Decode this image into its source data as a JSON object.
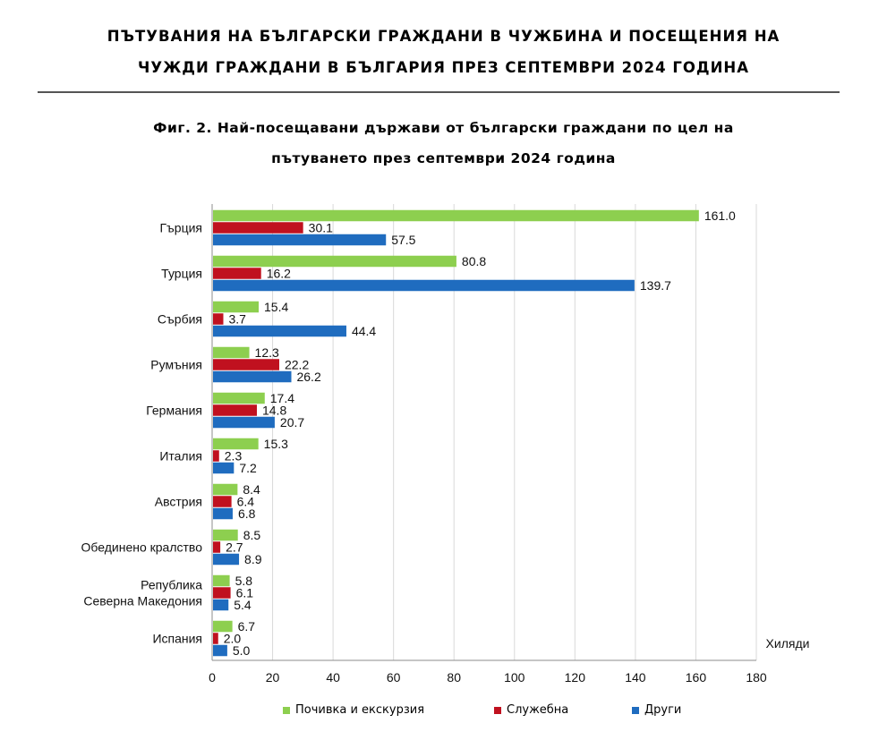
{
  "header": {
    "title_line1": "ПЪТУВАНИЯ НА БЪЛГАРСКИ ГРАЖДАНИ В ЧУЖБИНА И ПОСЕЩЕНИЯ НА",
    "title_line2": "ЧУЖДИ ГРАЖДАНИ В БЪЛГАРИЯ ПРЕЗ СЕПТЕМВРИ 2024 ГОДИНА"
  },
  "figure": {
    "title_line1": "Фиг. 2. Най-посещавани държави от български граждани по цел на",
    "title_line2": "пътуването през септември 2024 година"
  },
  "colors": {
    "leisure": "#8dcf4f",
    "business": "#c0111f",
    "other": "#1f6cbf",
    "grid": "#d9d9d9"
  },
  "chart_data": {
    "type": "bar",
    "orientation": "horizontal",
    "unit_label": "Хиляди",
    "xlim": [
      0,
      180
    ],
    "x_ticks": [
      "0",
      "20",
      "40",
      "60",
      "80",
      "100",
      "120",
      "140",
      "160",
      "180"
    ],
    "grid": true,
    "legend_position": "bottom",
    "categories": [
      [
        "Гърция"
      ],
      [
        "Турция"
      ],
      [
        "Сърбия"
      ],
      [
        "Румъния"
      ],
      [
        "Германия"
      ],
      [
        "Италия"
      ],
      [
        "Австрия"
      ],
      [
        "Обединено кралство"
      ],
      [
        "Република",
        "Северна Македония"
      ],
      [
        "Испания"
      ]
    ],
    "series": [
      {
        "name": "Почивка и екскурзия",
        "color_key": "leisure",
        "values": [
          161.0,
          80.8,
          15.4,
          12.3,
          17.4,
          15.3,
          8.4,
          8.5,
          5.8,
          6.7
        ],
        "labels": [
          "161.0",
          "80.8",
          "15.4",
          "12.3",
          "17.4",
          "15.3",
          "8.4",
          "8.5",
          "5.8",
          "6.7"
        ]
      },
      {
        "name": "Служебна",
        "color_key": "business",
        "values": [
          30.1,
          16.2,
          3.7,
          22.2,
          14.8,
          2.3,
          6.4,
          2.7,
          6.1,
          2.0
        ],
        "labels": [
          "30.1",
          "16.2",
          "3.7",
          "22.2",
          "14.8",
          "2.3",
          "6.4",
          "2.7",
          "6.1",
          "2.0"
        ]
      },
      {
        "name": "Други",
        "color_key": "other",
        "values": [
          57.5,
          139.7,
          44.4,
          26.2,
          20.7,
          7.2,
          6.8,
          8.9,
          5.4,
          5.0
        ],
        "labels": [
          "57.5",
          "139.7",
          "44.4",
          "26.2",
          "20.7",
          "7.2",
          "6.8",
          "8.9",
          "5.4",
          "5.0"
        ]
      }
    ]
  }
}
